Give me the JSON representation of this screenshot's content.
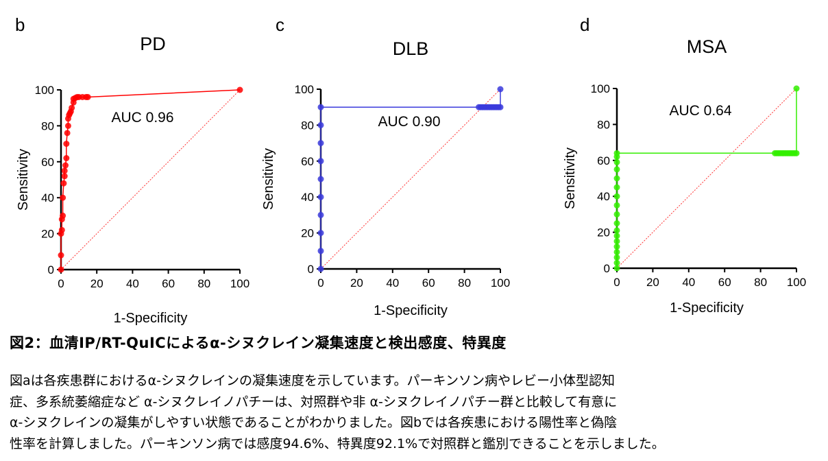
{
  "figure": {
    "caption_title": "図2：血清IP/RT-QuICによるα-シヌクレイン凝集速度と検出感度、特異度",
    "caption_lines": [
      "図aは各疾患群におけるα-シヌクレインの凝集速度を示しています。パーキンソン病やレビー小体型認知",
      "症、多系統萎縮症など α-シヌクレイノパチーは、対照群や非 α-シヌクレイノパチー群と比較して有意に",
      "α-シヌクレインの凝集がしやすい状態であることがわかりました。図bでは各疾患における陽性率と偽陰",
      "性率を計算しました。パーキンソン病では感度94.6%、特異度92.1%で対照群と鑑別できることを示しました。"
    ]
  },
  "chart_data": [
    {
      "type": "line",
      "panel_label": "b",
      "title": "PD",
      "xlabel": "1-Specificity",
      "ylabel": "Sensitivity",
      "xlim": [
        0,
        100
      ],
      "ylim": [
        0,
        100
      ],
      "xticks": [
        0,
        20,
        40,
        60,
        80,
        100
      ],
      "yticks": [
        0,
        20,
        40,
        60,
        80,
        100
      ],
      "annotation": "AUC 0.96",
      "color": "#ff0000",
      "grid": false,
      "reference_line": true,
      "series": [
        {
          "x": [
            0,
            0,
            0,
            0.5,
            0.5,
            1,
            1,
            1.5,
            2,
            2,
            2.5,
            3,
            3,
            3.5,
            4,
            4,
            4.5,
            5,
            5.5,
            6,
            7,
            7,
            8,
            9,
            10,
            12,
            14,
            15,
            100
          ],
          "y": [
            0,
            8,
            20,
            22,
            28,
            30,
            40,
            48,
            52,
            55,
            58,
            62,
            70,
            76,
            80,
            84,
            86,
            87,
            88,
            90,
            93,
            95,
            95.5,
            96,
            96,
            96,
            96,
            96,
            100
          ]
        }
      ]
    },
    {
      "type": "line",
      "panel_label": "c",
      "title": "DLB",
      "xlabel": "1-Specificity",
      "ylabel": "Sensitivity",
      "xlim": [
        0,
        100
      ],
      "ylim": [
        0,
        100
      ],
      "xticks": [
        0,
        20,
        40,
        60,
        80,
        100
      ],
      "yticks": [
        0,
        20,
        40,
        60,
        80,
        100
      ],
      "annotation": "AUC 0.90",
      "color": "#3a3adc",
      "grid": false,
      "reference_line": true,
      "series": [
        {
          "x": [
            0,
            0,
            0,
            0,
            0,
            0,
            0,
            0,
            0,
            0,
            88,
            89,
            90,
            91,
            92,
            93,
            94,
            95,
            96,
            97,
            98,
            99,
            100,
            100
          ],
          "y": [
            0,
            10,
            20,
            30,
            40,
            50,
            60,
            70,
            80,
            90,
            90,
            90,
            90,
            90,
            90,
            90,
            90,
            90,
            90,
            90,
            90,
            90,
            90,
            100
          ]
        }
      ]
    },
    {
      "type": "line",
      "panel_label": "d",
      "title": "MSA",
      "xlabel": "1-Specificity",
      "ylabel": "Sensitivity",
      "xlim": [
        0,
        100
      ],
      "ylim": [
        0,
        100
      ],
      "xticks": [
        0,
        20,
        40,
        60,
        80,
        100
      ],
      "yticks": [
        0,
        20,
        40,
        60,
        80,
        100
      ],
      "annotation": "AUC 0.64",
      "color": "#33ee00",
      "grid": false,
      "reference_line": true,
      "series": [
        {
          "x": [
            0,
            0,
            0,
            0,
            0,
            0,
            0,
            0,
            0,
            0,
            0,
            0,
            0,
            0,
            0,
            0,
            0,
            0,
            88,
            89,
            90,
            91,
            92,
            93,
            94,
            95,
            96,
            97,
            98,
            99,
            100,
            100
          ],
          "y": [
            0,
            3,
            6,
            9,
            12,
            15,
            18,
            21,
            25,
            30,
            35,
            40,
            45,
            50,
            55,
            59,
            62,
            64,
            64,
            64,
            64,
            64,
            64,
            64,
            64,
            64,
            64,
            64,
            64,
            64,
            64,
            100
          ]
        }
      ]
    }
  ]
}
